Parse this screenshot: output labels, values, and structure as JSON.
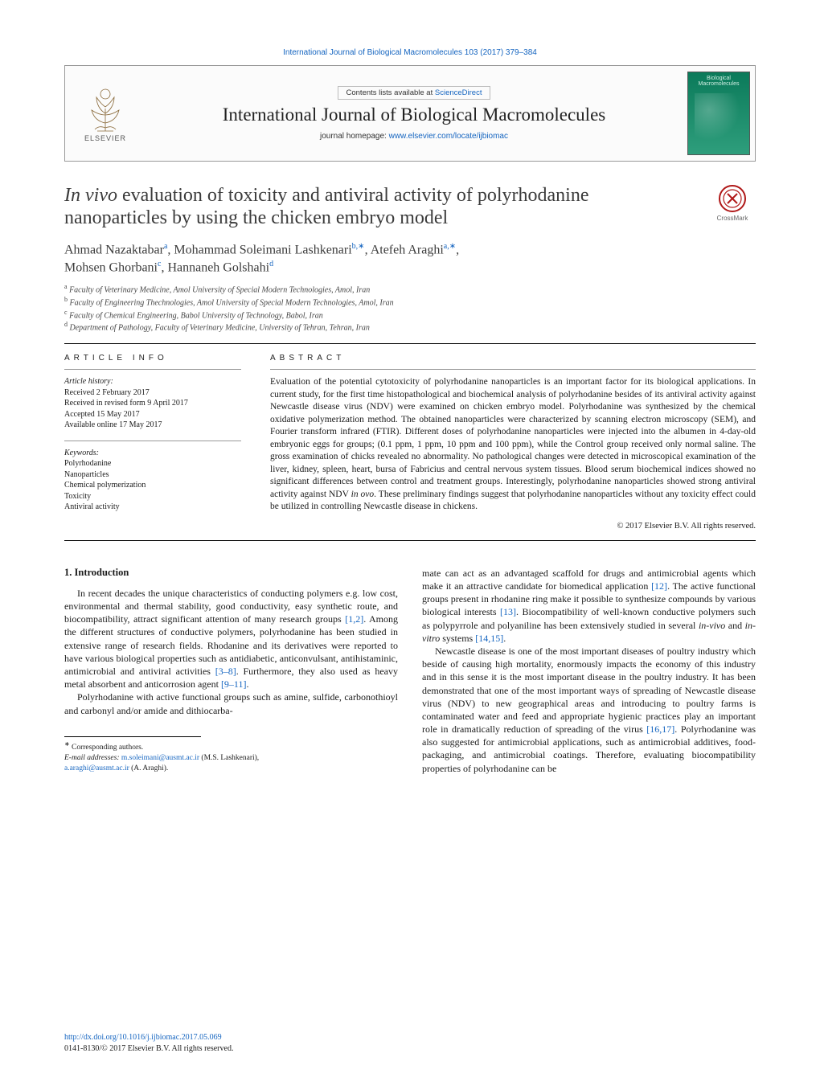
{
  "top_link": "International Journal of Biological Macromolecules 103 (2017) 379–384",
  "header": {
    "contents_prefix": "Contents lists available at ",
    "contents_link": "ScienceDirect",
    "journal_title": "International Journal of Biological Macromolecules",
    "homepage_prefix": "journal homepage: ",
    "homepage_link": "www.elsevier.com/locate/ijbiomac",
    "elsevier_label": "ELSEVIER",
    "cover_label": "Biological Macromolecules"
  },
  "crossmark_label": "CrossMark",
  "title_italic_lead": "In vivo",
  "title_rest": " evaluation of toxicity and antiviral activity of polyrhodanine nanoparticles by using the chicken embryo model",
  "authors_html": [
    {
      "name": "Ahmad Nazaktabar",
      "sup": "a"
    },
    {
      "name": "Mohammad Soleimani Lashkenari",
      "sup": "b,",
      "corr": true
    },
    {
      "name": "Atefeh Araghi",
      "sup": "a,",
      "corr": true
    },
    {
      "name": "Mohsen Ghorbani",
      "sup": "c"
    },
    {
      "name": "Hannaneh Golshahi",
      "sup": "d"
    }
  ],
  "affiliations": [
    {
      "sup": "a",
      "text": "Faculty of Veterinary Medicine, Amol University of Special Modern Technologies, Amol, Iran"
    },
    {
      "sup": "b",
      "text": "Faculty of Engineering Thechnologies, Amol University of Special Modern Technologies, Amol, Iran"
    },
    {
      "sup": "c",
      "text": "Faculty of Chemical Engineering, Babol University of Technology, Babol, Iran"
    },
    {
      "sup": "d",
      "text": "Department of Pathology, Faculty of Veterinary Medicine, University of Tehran, Tehran, Iran"
    }
  ],
  "info_head": "article info",
  "abstract_head": "abstract",
  "history_label": "Article history:",
  "history": [
    "Received 2 February 2017",
    "Received in revised form 9 April 2017",
    "Accepted 15 May 2017",
    "Available online 17 May 2017"
  ],
  "keywords_label": "Keywords:",
  "keywords": [
    "Polyrhodanine",
    "Nanoparticles",
    "Chemical polymerization",
    "Toxicity",
    "Antiviral activity"
  ],
  "abstract_text_pre": "Evaluation of the potential cytotoxicity of polyrhodanine nanoparticles is an important factor for its biological applications. In current study, for the first time histopathological and biochemical analysis of polyrhodanine besides of its antiviral activity against Newcastle disease virus (NDV) were examined on chicken embryo model. Polyrhodanine was synthesized by the chemical oxidative polymerization method. The obtained nanoparticles were characterized by scanning electron microscopy (SEM), and Fourier transform infrared (FTIR). Different doses of polyrhodanine nanoparticles were injected into the albumen in 4-day-old embryonic eggs for groups; (0.1 ppm, 1 ppm, 10 ppm and 100 ppm), while the Control group received only normal saline. The gross examination of chicks revealed no abnormality. No pathological changes were detected in microscopical examination of the liver, kidney, spleen, heart, bursa of Fabricius and central nervous system tissues. Blood serum biochemical indices showed no significant differences between control and treatment groups. Interestingly, polyrhodanine nanoparticles showed strong antiviral activity against NDV ",
  "abstract_in_ovo": "in ovo",
  "abstract_text_post": ". These preliminary findings suggest that polyrhodanine nanoparticles without any toxicity effect could be utilized in controlling Newcastle disease in chickens.",
  "copyright": "© 2017 Elsevier B.V. All rights reserved.",
  "section_1_head": "1.  Introduction",
  "col1_p1_a": "In recent decades the unique characteristics of conducting polymers e.g. low cost, environmental and thermal stability, good conductivity, easy synthetic route, and biocompatibility, attract significant attention of many research groups ",
  "cite_12": "[1,2]",
  "col1_p1_b": ". Among the different structures of conductive polymers, polyrhodanine has been studied in extensive range of research fields. Rhodanine and its derivatives were reported to have various biological properties such as antidiabetic, anticonvulsant, antihistaminic, antimicrobial and antiviral activities ",
  "cite_38": "[3–8]",
  "col1_p1_c": ". Furthermore, they also used as heavy metal absorbent and anticorrosion agent ",
  "cite_911": "[9–11]",
  "col1_p1_d": ".",
  "col1_p2": "Polyrhodanine with active functional groups such as amine, sulfide, carbonothioyl and carbonyl and/or amide and dithiocarba-",
  "col2_p1_a": "mate can act as an advantaged scaffold for drugs and antimicrobial agents which make it an attractive candidate for biomedical application ",
  "cite_12b": "[12]",
  "col2_p1_b": ". The active functional groups present in rhodanine ring make it possible to synthesize compounds by various biological interests ",
  "cite_13": "[13]",
  "col2_p1_c": ". Biocompatibility of well-known conductive polymers such as polypyrrole and polyaniline has been extensively studied in several ",
  "col2_p1_invivo": "in-vivo",
  "col2_p1_and": " and ",
  "col2_p1_invitro": "in-vitro",
  "col2_p1_d": " systems ",
  "cite_1415": "[14,15]",
  "col2_p1_e": ".",
  "col2_p2_a": "Newcastle disease is one of the most important diseases of poultry industry which beside of causing high mortality, enormously impacts the economy of this industry and in this sense it is the most important disease in the poultry industry. It has been demonstrated that one of the most important ways of spreading of Newcastle disease virus (NDV) to new geographical areas and introducing to poultry farms is contaminated water and feed and appropriate hygienic practices play an important role in dramatically reduction of spreading of the virus ",
  "cite_1617": "[16,17]",
  "col2_p2_b": ". Polyrhodanine was also suggested for antimicrobial applications, such as antimicrobial additives, food-packaging, and antimicrobial coatings. Therefore, evaluating biocompatibility properties of polyrhodanine can be",
  "footnotes": {
    "corresponding": "Corresponding authors.",
    "email_label": "E-mail addresses:",
    "email1": "m.soleimani@ausmt.ac.ir",
    "email1_name": " (M.S. Lashkenari),",
    "email2": "a.araghi@ausmt.ac.ir",
    "email2_name": " (A. Araghi)."
  },
  "bottom": {
    "doi": "http://dx.doi.org/10.1016/j.ijbiomac.2017.05.069",
    "issn_line": "0141-8130/© 2017 Elsevier B.V. All rights reserved."
  },
  "colors": {
    "link": "#1565c0",
    "text": "#1a1a1a",
    "cover_bg_top": "#0b7a5a",
    "cover_bg_bot": "#2e9e7c"
  }
}
